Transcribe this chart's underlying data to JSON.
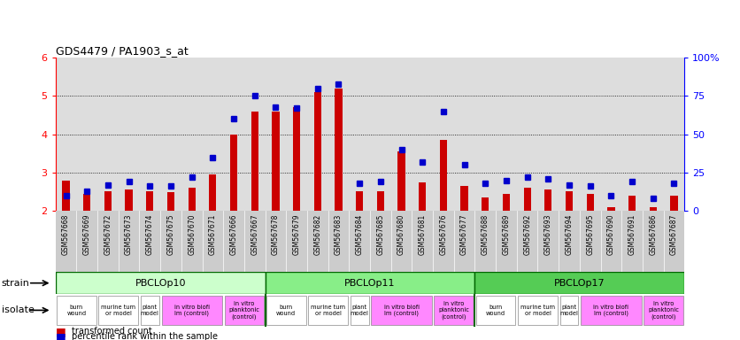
{
  "title": "GDS4479 / PA1903_s_at",
  "gsm_labels": [
    "GSM567668",
    "GSM567669",
    "GSM567672",
    "GSM567673",
    "GSM567674",
    "GSM567675",
    "GSM567670",
    "GSM567671",
    "GSM567666",
    "GSM567667",
    "GSM567678",
    "GSM567679",
    "GSM567682",
    "GSM567683",
    "GSM567684",
    "GSM567685",
    "GSM567680",
    "GSM567681",
    "GSM567676",
    "GSM567677",
    "GSM567688",
    "GSM567689",
    "GSM567692",
    "GSM567693",
    "GSM567694",
    "GSM567695",
    "GSM567690",
    "GSM567691",
    "GSM567686",
    "GSM567687"
  ],
  "bar_heights": [
    2.8,
    2.45,
    2.5,
    2.55,
    2.5,
    2.48,
    2.6,
    2.95,
    4.0,
    4.6,
    4.6,
    4.7,
    5.1,
    5.2,
    2.5,
    2.5,
    3.55,
    2.75,
    3.85,
    2.65,
    2.35,
    2.45,
    2.6,
    2.55,
    2.5,
    2.45,
    2.1,
    2.4,
    2.1,
    2.4
  ],
  "percentile_ranks": [
    10,
    13,
    17,
    19,
    16,
    16,
    22,
    35,
    60,
    75,
    68,
    67,
    80,
    83,
    18,
    19,
    40,
    32,
    65,
    30,
    18,
    20,
    22,
    21,
    17,
    16,
    10,
    19,
    8,
    18
  ],
  "strains": [
    {
      "label": "PBCLOp10",
      "start": 0,
      "end": 10,
      "color": "#ccffcc"
    },
    {
      "label": "PBCLOp11",
      "start": 10,
      "end": 20,
      "color": "#88ee88"
    },
    {
      "label": "PBCLOp17",
      "start": 20,
      "end": 30,
      "color": "#55cc55"
    }
  ],
  "isolates": [
    {
      "label": "burn\nwound",
      "start": 0,
      "end": 2,
      "color": "#ffffff"
    },
    {
      "label": "murine tum\nor model",
      "start": 2,
      "end": 4,
      "color": "#ffffff"
    },
    {
      "label": "plant\nmodel",
      "start": 4,
      "end": 5,
      "color": "#ffffff"
    },
    {
      "label": "in vitro biofi\nlm (control)",
      "start": 5,
      "end": 8,
      "color": "#ff88ff"
    },
    {
      "label": "in vitro\nplanktonic\n(control)",
      "start": 8,
      "end": 10,
      "color": "#ff88ff"
    },
    {
      "label": "burn\nwound",
      "start": 10,
      "end": 12,
      "color": "#ffffff"
    },
    {
      "label": "murine tum\nor model",
      "start": 12,
      "end": 14,
      "color": "#ffffff"
    },
    {
      "label": "plant\nmodel",
      "start": 14,
      "end": 15,
      "color": "#ffffff"
    },
    {
      "label": "in vitro biofi\nlm (control)",
      "start": 15,
      "end": 18,
      "color": "#ff88ff"
    },
    {
      "label": "in vitro\nplanktonic\n(control)",
      "start": 18,
      "end": 20,
      "color": "#ff88ff"
    },
    {
      "label": "burn\nwound",
      "start": 20,
      "end": 22,
      "color": "#ffffff"
    },
    {
      "label": "murine tum\nor model",
      "start": 22,
      "end": 24,
      "color": "#ffffff"
    },
    {
      "label": "plant\nmodel",
      "start": 24,
      "end": 25,
      "color": "#ffffff"
    },
    {
      "label": "in vitro biofi\nlm (control)",
      "start": 25,
      "end": 28,
      "color": "#ff88ff"
    },
    {
      "label": "in vitro\nplanktonic\n(control)",
      "start": 28,
      "end": 30,
      "color": "#ff88ff"
    }
  ],
  "ylim_left": [
    2.0,
    6.0
  ],
  "ylim_right": [
    0,
    100
  ],
  "yticks_left": [
    2,
    3,
    4,
    5,
    6
  ],
  "yticks_right": [
    0,
    25,
    50,
    75,
    100
  ],
  "bar_color": "#cc0000",
  "dot_color": "#0000cc",
  "col_bg_odd": "#dddddd",
  "col_bg_even": "#eeeeee",
  "n_bars": 30
}
